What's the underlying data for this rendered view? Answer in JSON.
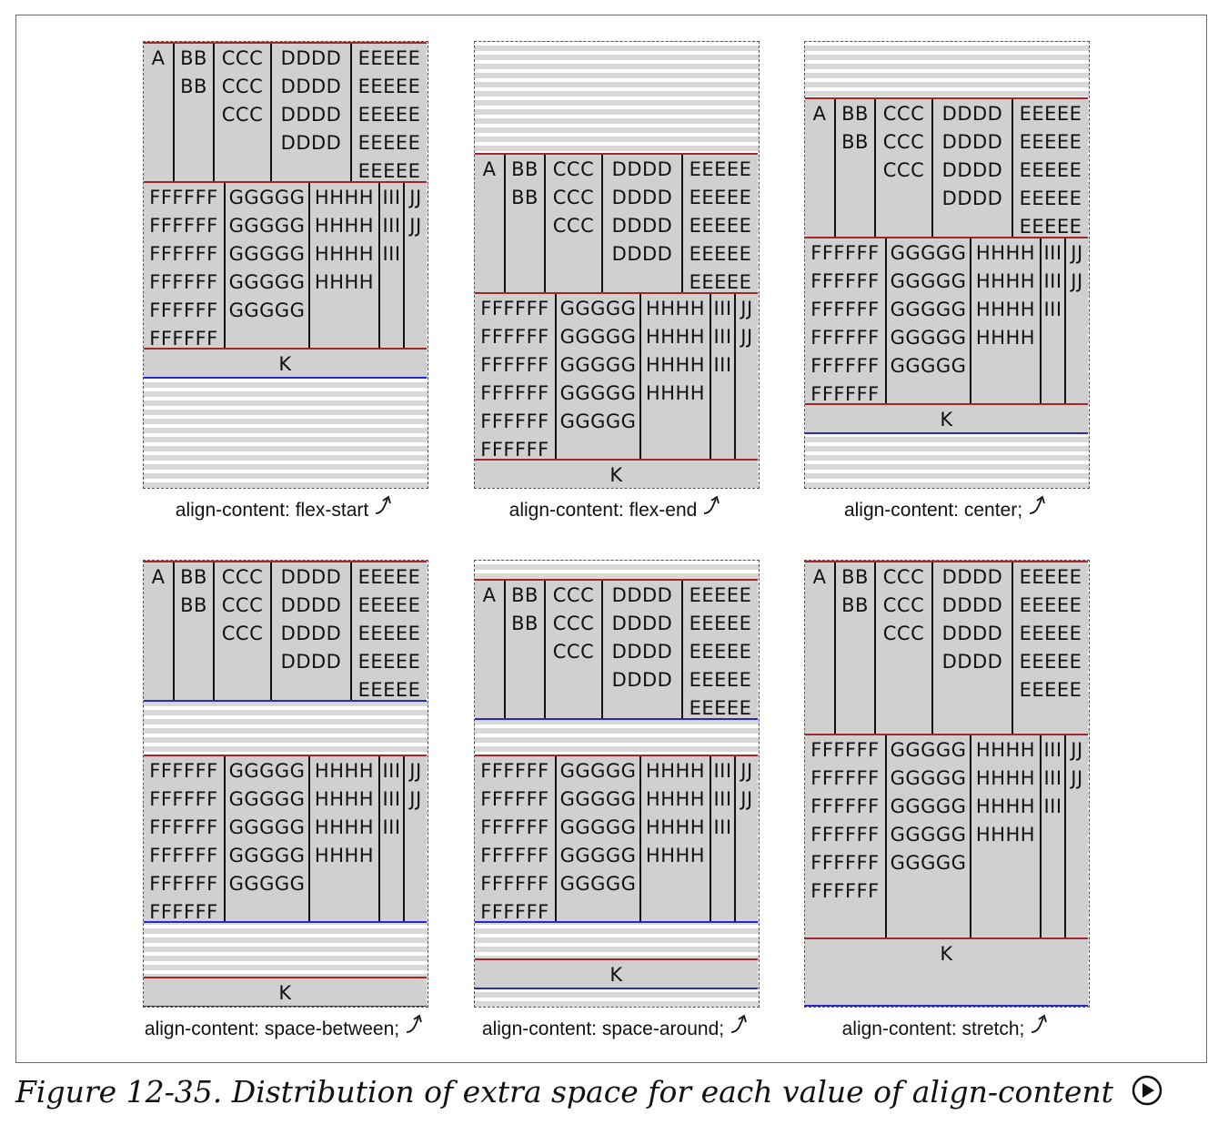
{
  "panels": [
    {
      "caption": "align-content: flex-start",
      "semicolon": "",
      "arrow_icon": "link-arrow-icon"
    },
    {
      "caption": "align-content: flex-end",
      "semicolon": "",
      "arrow_icon": "link-arrow-icon"
    },
    {
      "caption": "align-content: center;",
      "semicolon": "",
      "arrow_icon": "link-arrow-icon"
    },
    {
      "caption": "align-content: space-between;",
      "semicolon": "",
      "arrow_icon": "link-arrow-icon"
    },
    {
      "caption": "align-content: space-around;",
      "semicolon": "",
      "arrow_icon": "link-arrow-icon"
    },
    {
      "caption": "align-content: stretch;",
      "semicolon": "",
      "arrow_icon": "link-arrow-icon"
    }
  ],
  "items": {
    "line1": [
      [
        "A"
      ],
      [
        "BB",
        "BB"
      ],
      [
        "CCC",
        "CCC",
        "CCC"
      ],
      [
        "DDDD",
        "DDDD",
        "DDDD",
        "DDDD"
      ],
      [
        "EEEEE",
        "EEEEE",
        "EEEEE",
        "EEEEE",
        "EEEEE"
      ]
    ],
    "line2": [
      [
        "FFFFFF",
        "FFFFFF",
        "FFFFFF",
        "FFFFFF",
        "FFFFFF",
        "FFFFFF"
      ],
      [
        "GGGGG",
        "GGGGG",
        "GGGGG",
        "GGGGG",
        "GGGGG"
      ],
      [
        "HHHH",
        "HHHH",
        "HHHH",
        "HHHH"
      ],
      [
        "III",
        "III",
        "III"
      ],
      [
        "JJ",
        "JJ"
      ]
    ],
    "line3": [
      [
        "K"
      ]
    ]
  },
  "figure": {
    "caption": "Figure 12-35. Distribution of extra space for each value of align-content",
    "play_icon": "play-icon"
  },
  "colors": {
    "item_fill": "#d0d0d0",
    "line_top_border": "#a02828",
    "line_bottom_border": "#2828c8",
    "stripe": "#d8d8d8"
  }
}
